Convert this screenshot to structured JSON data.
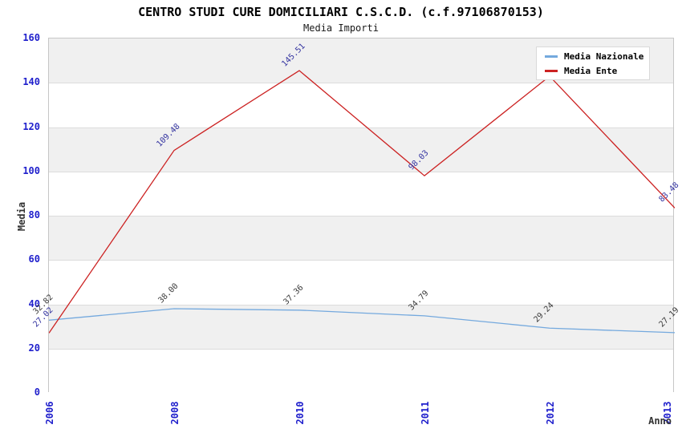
{
  "chart_data": {
    "type": "line",
    "title": "CENTRO STUDI CURE DOMICILIARI C.S.C.D. (c.f.97106870153)",
    "subtitle": "Media Importi",
    "xlabel": "Anno",
    "ylabel": "Media",
    "categories": [
      "2006",
      "2008",
      "2010",
      "2011",
      "2012",
      "2013"
    ],
    "ylim": [
      0,
      160
    ],
    "ytick_step": 20,
    "grid": "horizontal-bands",
    "legend_position": "top-right",
    "tick_color": "#1f1fcc",
    "band_color": "#f0f0f0",
    "series": [
      {
        "name": "Media Nazionale",
        "color": "#74a9de",
        "label_color": "#3c3c3c",
        "values": [
          32.82,
          38.0,
          37.36,
          34.79,
          29.24,
          27.19
        ],
        "labels": [
          "32.82",
          "38.00",
          "37.36",
          "34.79",
          "29.24",
          "27.19"
        ]
      },
      {
        "name": "Media Ente",
        "color": "#cc2222",
        "label_color": "#3333a0",
        "values": [
          27.02,
          109.48,
          145.51,
          98.03,
          143.0,
          83.48
        ],
        "labels": [
          "27.02",
          "109.48",
          "145.51",
          "98.03",
          "",
          "83.48"
        ]
      }
    ]
  }
}
